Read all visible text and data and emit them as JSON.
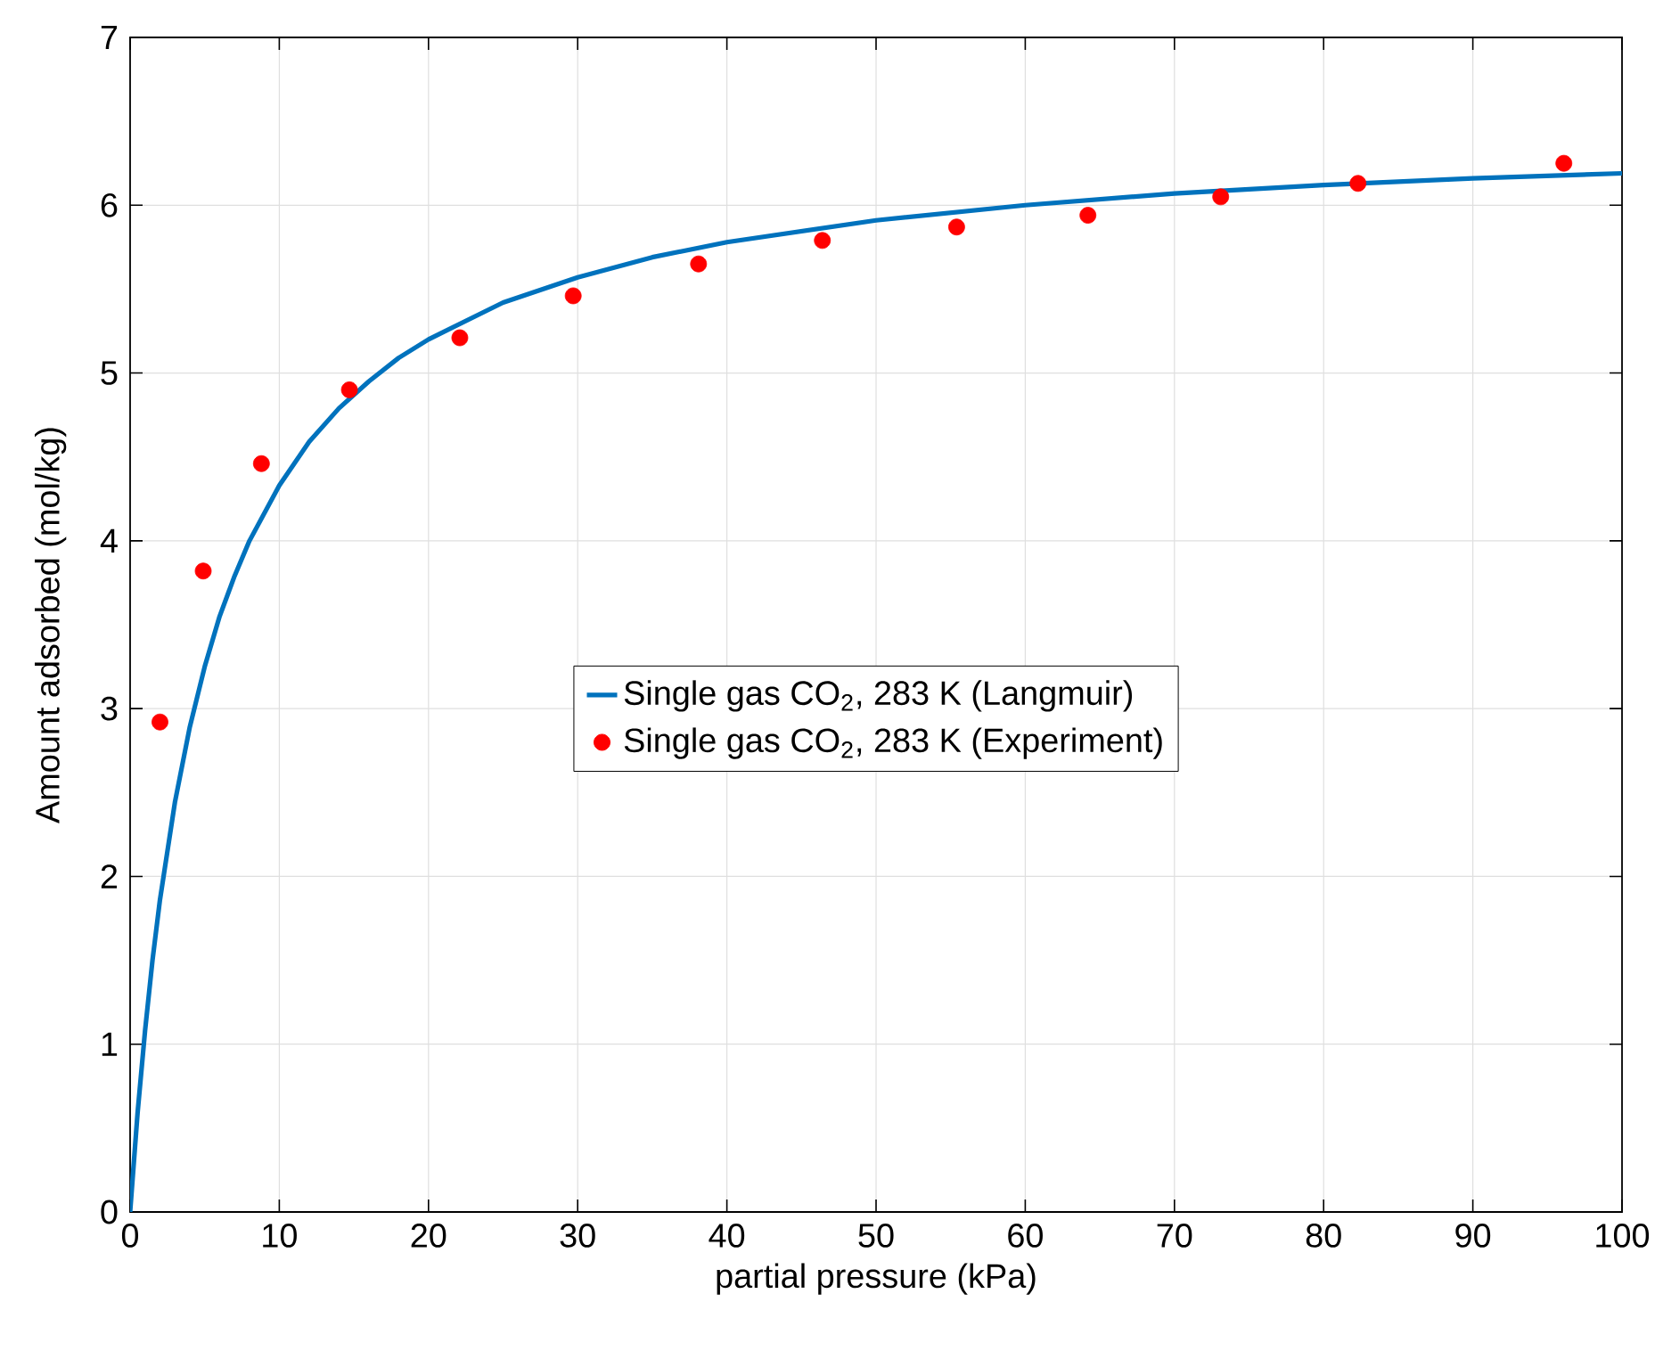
{
  "chart_data": {
    "type": "scatter",
    "xlabel": "partial pressure (kPa)",
    "ylabel": "Amount adsorbed (mol/kg)",
    "xlim": [
      0,
      100
    ],
    "ylim": [
      0,
      7
    ],
    "xticks": [
      0,
      10,
      20,
      30,
      40,
      50,
      60,
      70,
      80,
      90,
      100
    ],
    "yticks": [
      0,
      1,
      2,
      3,
      4,
      5,
      6,
      7
    ],
    "grid": true,
    "legend": "center",
    "series": [
      {
        "name": "Single gas CO$_{2}$, 283 K (Langmuir)",
        "type": "line",
        "color": "#0072bd",
        "marker": "none",
        "line_style": "solid",
        "x": [
          0,
          0.5,
          1,
          1.5,
          2,
          3,
          4,
          5,
          6,
          7,
          8,
          10,
          12,
          14,
          16,
          18,
          20,
          25,
          30,
          35,
          40,
          50,
          60,
          70,
          80,
          90,
          100
        ],
        "values": [
          0,
          0.59,
          1.08,
          1.5,
          1.86,
          2.44,
          2.89,
          3.25,
          3.55,
          3.79,
          4.0,
          4.33,
          4.59,
          4.79,
          4.95,
          5.09,
          5.2,
          5.42,
          5.57,
          5.69,
          5.78,
          5.91,
          6.0,
          6.07,
          6.12,
          6.16,
          6.19
        ]
      },
      {
        "name": "Single gas CO$_{2}$, 283 K (Experiment)",
        "color": "#ff0000",
        "marker": "circle",
        "x": [
          2.0,
          4.9,
          8.8,
          14.7,
          22.1,
          29.7,
          38.1,
          46.4,
          55.4,
          64.2,
          73.1,
          82.3,
          96.1
        ],
        "values": [
          2.92,
          3.82,
          4.46,
          4.9,
          5.21,
          5.46,
          5.65,
          5.79,
          5.87,
          5.94,
          6.05,
          6.13,
          6.25
        ]
      }
    ]
  }
}
